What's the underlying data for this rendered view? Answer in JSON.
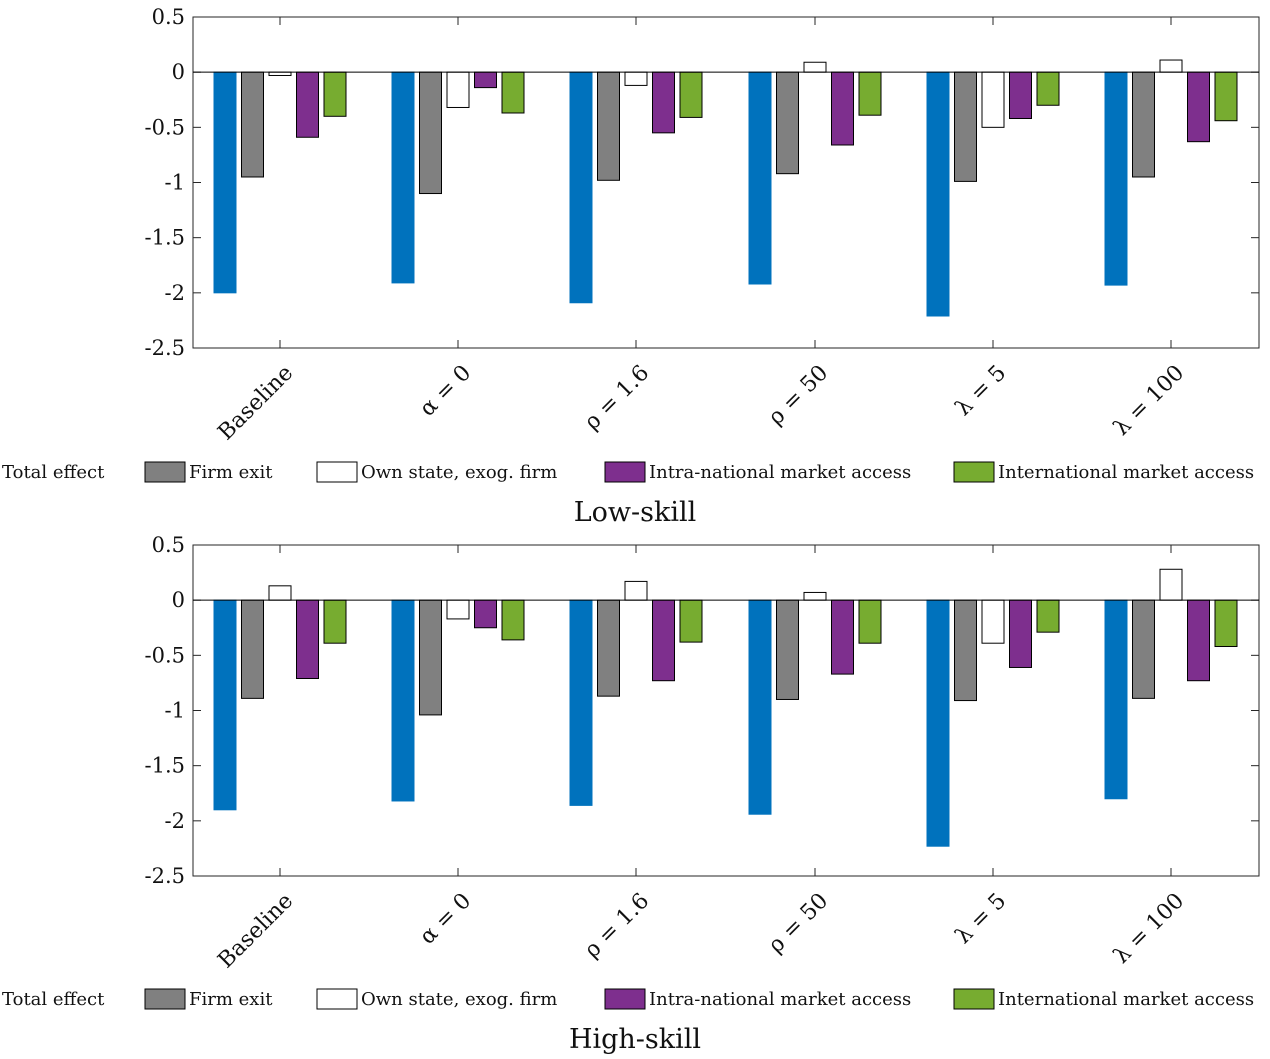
{
  "colors": {
    "total_effect": "#0072BD",
    "firm_exit": "#808080",
    "own_state": "#FFFFFF",
    "intra_national": "#7E2F8E",
    "international": "#77AC30"
  },
  "chart_data": [
    {
      "type": "bar",
      "title": "Low-skill",
      "categories": [
        "Baseline",
        "α = 0",
        "ρ = 1.6",
        "ρ = 50",
        "λ = 5",
        "λ = 100"
      ],
      "ylim": [
        -2.5,
        0.5
      ],
      "yticks": [
        0.5,
        0,
        -0.5,
        -1,
        -1.5,
        -2,
        -2.5
      ],
      "ytick_labels": [
        "0.5",
        "0",
        "-0.5",
        "-1",
        "-1.5",
        "-2",
        "-2.5"
      ],
      "grid": false,
      "legend_position": "below",
      "series": [
        {
          "name": "Total effect",
          "color_key": "total_effect",
          "values": [
            -2.0,
            -1.91,
            -2.09,
            -1.92,
            -2.21,
            -1.93
          ]
        },
        {
          "name": "Firm exit",
          "color_key": "firm_exit",
          "values": [
            -0.95,
            -1.1,
            -0.98,
            -0.92,
            -0.99,
            -0.95
          ]
        },
        {
          "name": "Own state, exog. firm",
          "color_key": "own_state",
          "values": [
            -0.03,
            -0.32,
            -0.12,
            0.09,
            -0.5,
            0.11
          ]
        },
        {
          "name": "Intra-national market access",
          "color_key": "intra_national",
          "values": [
            -0.59,
            -0.14,
            -0.55,
            -0.66,
            -0.42,
            -0.63
          ]
        },
        {
          "name": "International market access",
          "color_key": "international",
          "values": [
            -0.4,
            -0.37,
            -0.41,
            -0.39,
            -0.3,
            -0.44
          ]
        }
      ]
    },
    {
      "type": "bar",
      "title": "High-skill",
      "categories": [
        "Baseline",
        "α = 0",
        "ρ = 1.6",
        "ρ = 50",
        "λ = 5",
        "λ = 100"
      ],
      "ylim": [
        -2.5,
        0.5
      ],
      "yticks": [
        0.5,
        0,
        -0.5,
        -1,
        -1.5,
        -2,
        -2.5
      ],
      "ytick_labels": [
        "0.5",
        "0",
        "-0.5",
        "-1",
        "-1.5",
        "-2",
        "-2.5"
      ],
      "grid": false,
      "legend_position": "below",
      "series": [
        {
          "name": "Total effect",
          "color_key": "total_effect",
          "values": [
            -1.9,
            -1.82,
            -1.86,
            -1.94,
            -2.23,
            -1.8
          ]
        },
        {
          "name": "Firm exit",
          "color_key": "firm_exit",
          "values": [
            -0.89,
            -1.04,
            -0.87,
            -0.9,
            -0.91,
            -0.89
          ]
        },
        {
          "name": "Own state, exog. firm",
          "color_key": "own_state",
          "values": [
            0.13,
            -0.17,
            0.17,
            0.07,
            -0.39,
            0.28
          ]
        },
        {
          "name": "Intra-national market access",
          "color_key": "intra_national",
          "values": [
            -0.71,
            -0.25,
            -0.73,
            -0.67,
            -0.61,
            -0.73
          ]
        },
        {
          "name": "International market access",
          "color_key": "international",
          "values": [
            -0.39,
            -0.36,
            -0.38,
            -0.39,
            -0.29,
            -0.42
          ]
        }
      ]
    }
  ]
}
